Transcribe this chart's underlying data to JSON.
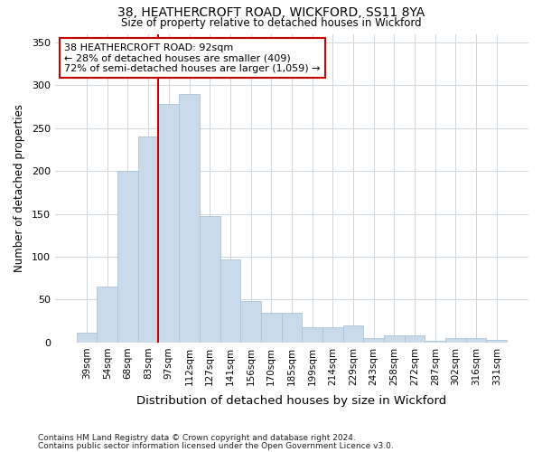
{
  "title1": "38, HEATHERCROFT ROAD, WICKFORD, SS11 8YA",
  "title2": "Size of property relative to detached houses in Wickford",
  "xlabel": "Distribution of detached houses by size in Wickford",
  "ylabel": "Number of detached properties",
  "footnote1": "Contains HM Land Registry data © Crown copyright and database right 2024.",
  "footnote2": "Contains public sector information licensed under the Open Government Licence v3.0.",
  "annotation_line1": "38 HEATHERCROFT ROAD: 92sqm",
  "annotation_line2": "← 28% of detached houses are smaller (409)",
  "annotation_line3": "72% of semi-detached houses are larger (1,059) →",
  "bar_labels": [
    "39sqm",
    "54sqm",
    "68sqm",
    "83sqm",
    "97sqm",
    "112sqm",
    "127sqm",
    "141sqm",
    "156sqm",
    "170sqm",
    "185sqm",
    "199sqm",
    "214sqm",
    "229sqm",
    "243sqm",
    "258sqm",
    "272sqm",
    "287sqm",
    "302sqm",
    "316sqm",
    "331sqm"
  ],
  "bar_values": [
    12,
    65,
    200,
    240,
    278,
    290,
    148,
    97,
    48,
    35,
    35,
    18,
    18,
    20,
    5,
    8,
    8,
    2,
    5,
    5,
    3
  ],
  "bar_color": "#c9daea",
  "bar_edge_color": "#a8c4d8",
  "vline_color": "#cc0000",
  "vline_position": 4,
  "annotation_box_color": "#cc0000",
  "annotation_bg": "#ffffff",
  "grid_color": "#d0d8e0",
  "background_color": "#ffffff",
  "plot_bg_color": "#ffffff",
  "ylim": [
    0,
    360
  ],
  "yticks": [
    0,
    50,
    100,
    150,
    200,
    250,
    300,
    350
  ]
}
